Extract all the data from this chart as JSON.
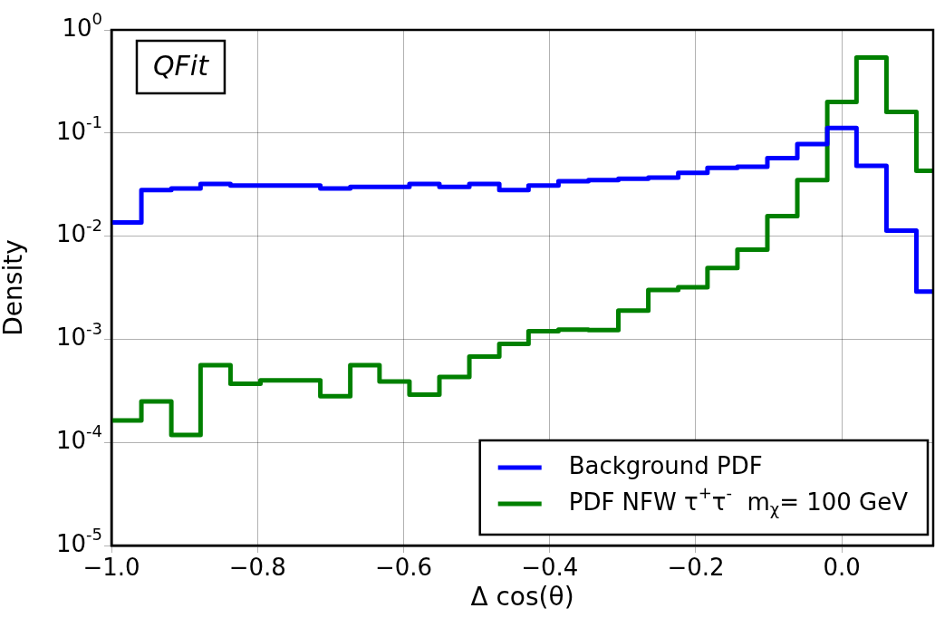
{
  "chart_data": {
    "type": "histogram",
    "xlabel": "Δ cos(θ)",
    "ylabel": "Density",
    "annotations": [
      "QFit"
    ],
    "bins": [
      -1,
      -0.959,
      -0.918,
      -0.878,
      -0.837,
      -0.796,
      -0.755,
      -0.714,
      -0.673,
      -0.633,
      -0.592,
      -0.551,
      -0.51,
      -0.469,
      -0.429,
      -0.388,
      -0.347,
      -0.306,
      -0.265,
      -0.224,
      -0.184,
      -0.143,
      -0.102,
      -0.061,
      -0.02,
      0.02,
      0.061,
      0.102,
      0.143
    ],
    "series": [
      {
        "name": "Background PDF",
        "color": "#0000ff",
        "values": [
          0.0136,
          0.028,
          0.029,
          0.032,
          0.031,
          0.031,
          0.031,
          0.029,
          0.03,
          0.03,
          0.032,
          0.03,
          0.032,
          0.028,
          0.031,
          0.034,
          0.035,
          0.036,
          0.037,
          0.041,
          0.046,
          0.047,
          0.057,
          0.078,
          0.112,
          0.048,
          0.0113,
          0.0029
        ]
      },
      {
        "name": "PDF NFW τ$^{+}$τ$^{-}$  m$_{χ}$= 100 GeV",
        "color": "#008000",
        "values": [
          0.000163,
          0.00025,
          0.000118,
          0.00056,
          0.00037,
          0.0004,
          0.0004,
          0.00028,
          0.00056,
          0.00039,
          0.00029,
          0.00043,
          0.00068,
          0.0009,
          0.0012,
          0.00124,
          0.00123,
          0.0019,
          0.003,
          0.0032,
          0.0049,
          0.0074,
          0.0156,
          0.035,
          0.2,
          0.54,
          0.16,
          0.043
        ]
      }
    ],
    "log": "y",
    "xlim": [
      -1,
      0.125
    ],
    "xticks": [
      {
        "value": -1,
        "label": "−1.0"
      },
      {
        "value": -0.8,
        "label": "−0.8"
      },
      {
        "value": -0.6,
        "label": "−0.6"
      },
      {
        "value": -0.4,
        "label": "−0.4"
      },
      {
        "value": -0.2,
        "label": "−0.2"
      },
      {
        "value": 0,
        "label": "0.0"
      }
    ],
    "ylim": [
      1e-05,
      1
    ],
    "yticks": [
      {
        "value": 1e-05,
        "label": "10$^{-5}$"
      },
      {
        "value": 0.0001,
        "label": "10$^{-4}$"
      },
      {
        "value": 0.001,
        "label": "10$^{-3}$"
      },
      {
        "value": 0.01,
        "label": "10$^{-2}$"
      },
      {
        "value": 0.1,
        "label": "10$^{-1}$"
      },
      {
        "value": 1,
        "label": "10$^{0}$"
      }
    ],
    "grid": true,
    "legend": "bottom right",
    "line_style": "solid"
  }
}
